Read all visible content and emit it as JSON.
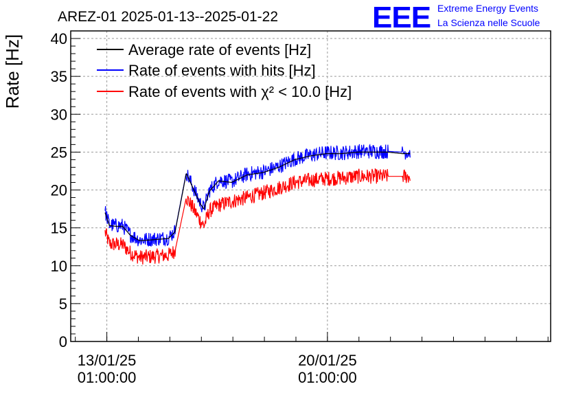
{
  "chart_data": {
    "type": "line",
    "title": "AREZ-01 2025-01-13--2025-01-22",
    "ylabel": "Rate [Hz]",
    "xlabel": "",
    "ylim": [
      0,
      41
    ],
    "yticks": [
      0,
      5,
      10,
      15,
      20,
      25,
      30,
      35,
      40
    ],
    "xlim": [
      "2025-01-11 21:30",
      "2025-01-27 03:00"
    ],
    "xticks": [
      {
        "date": "2025-01-13 01:00",
        "label_line1": "13/01/25",
        "label_line2": "01:00:00"
      },
      {
        "date": "2025-01-20 01:00",
        "label_line1": "20/01/25",
        "label_line2": "01:00:00"
      }
    ],
    "grid": true,
    "legend_position": "top-left",
    "series": [
      {
        "name": "Average rate of events [Hz]",
        "color": "#000000",
        "noise": 0,
        "points": [
          [
            "2025-01-12 23:40",
            17.0
          ],
          [
            "2025-01-13 03:00",
            15.3
          ],
          [
            "2025-01-13 08:00",
            15.2
          ],
          [
            "2025-01-13 13:00",
            15.2
          ],
          [
            "2025-01-13 19:00",
            14.0
          ],
          [
            "2025-01-14 02:00",
            13.3
          ],
          [
            "2025-01-14 10:00",
            13.4
          ],
          [
            "2025-01-15 00:00",
            13.6
          ],
          [
            "2025-01-15 05:00",
            14.5
          ],
          [
            "2025-01-15 13:30",
            22.2
          ],
          [
            "2025-01-15 18:00",
            20.5
          ],
          [
            "2025-01-16 00:00",
            18.2
          ],
          [
            "2025-01-16 03:00",
            17.5
          ],
          [
            "2025-01-16 07:00",
            19.8
          ],
          [
            "2025-01-16 14:00",
            21.2
          ],
          [
            "2025-01-17 00:00",
            21.0
          ],
          [
            "2025-01-17 12:00",
            22.0
          ],
          [
            "2025-01-18 00:00",
            22.3
          ],
          [
            "2025-01-18 12:00",
            23.0
          ],
          [
            "2025-01-19 00:00",
            24.0
          ],
          [
            "2025-01-19 12:00",
            24.5
          ],
          [
            "2025-01-20 00:00",
            24.8
          ],
          [
            "2025-01-20 12:00",
            24.8
          ],
          [
            "2025-01-21 00:00",
            25.0
          ],
          [
            "2025-01-21 12:00",
            25.0
          ],
          [
            "2025-01-21 23:00",
            25.0
          ],
          [
            "2025-01-22 10:00",
            24.8
          ],
          [
            "2025-01-22 16:00",
            24.8
          ]
        ]
      },
      {
        "name": "Rate of events with hits [Hz]",
        "color": "#0000ff",
        "noise": 1.0,
        "points": [
          [
            "2025-01-12 23:40",
            17.2
          ],
          [
            "2025-01-13 03:00",
            15.4
          ],
          [
            "2025-01-13 08:00",
            15.3
          ],
          [
            "2025-01-13 13:00",
            15.3
          ],
          [
            "2025-01-13 19:00",
            14.1
          ],
          [
            "2025-01-14 02:00",
            13.4
          ],
          [
            "2025-01-14 10:00",
            13.5
          ],
          [
            "2025-01-15 00:00",
            13.7
          ],
          [
            "2025-01-15 05:00",
            14.6
          ],
          [
            "2025-01-15 13:30",
            22.3
          ],
          [
            "2025-01-15 18:00",
            20.6
          ],
          [
            "2025-01-16 00:00",
            18.3
          ],
          [
            "2025-01-16 03:00",
            17.6
          ],
          [
            "2025-01-16 07:00",
            19.9
          ],
          [
            "2025-01-16 14:00",
            21.3
          ],
          [
            "2025-01-17 00:00",
            21.1
          ],
          [
            "2025-01-17 12:00",
            22.1
          ],
          [
            "2025-01-18 00:00",
            22.4
          ],
          [
            "2025-01-18 12:00",
            23.1
          ],
          [
            "2025-01-19 00:00",
            24.1
          ],
          [
            "2025-01-19 12:00",
            24.6
          ],
          [
            "2025-01-20 00:00",
            24.9
          ],
          [
            "2025-01-20 12:00",
            24.9
          ],
          [
            "2025-01-21 00:00",
            25.1
          ],
          [
            "2025-01-21 12:00",
            25.1
          ],
          [
            "2025-01-21 23:00",
            25.1
          ],
          [
            "2025-01-22 10:00",
            25.0
          ],
          [
            "2025-01-22 16:00",
            25.0
          ]
        ]
      },
      {
        "name": "Rate of events with χ² < 10.0 [Hz]",
        "color": "#ff0000",
        "noise": 1.0,
        "points": [
          [
            "2025-01-12 23:40",
            14.4
          ],
          [
            "2025-01-13 03:00",
            12.9
          ],
          [
            "2025-01-13 08:00",
            12.8
          ],
          [
            "2025-01-13 13:00",
            12.8
          ],
          [
            "2025-01-13 19:00",
            11.7
          ],
          [
            "2025-01-14 02:00",
            11.1
          ],
          [
            "2025-01-14 10:00",
            11.2
          ],
          [
            "2025-01-15 00:00",
            11.4
          ],
          [
            "2025-01-15 05:00",
            12.0
          ],
          [
            "2025-01-15 13:30",
            19.0
          ],
          [
            "2025-01-15 18:00",
            17.8
          ],
          [
            "2025-01-16 00:00",
            16.0
          ],
          [
            "2025-01-16 03:00",
            15.3
          ],
          [
            "2025-01-16 07:00",
            17.2
          ],
          [
            "2025-01-16 14:00",
            18.0
          ],
          [
            "2025-01-17 00:00",
            18.5
          ],
          [
            "2025-01-17 12:00",
            19.0
          ],
          [
            "2025-01-18 00:00",
            19.6
          ],
          [
            "2025-01-18 12:00",
            20.3
          ],
          [
            "2025-01-19 00:00",
            21.0
          ],
          [
            "2025-01-19 12:00",
            21.3
          ],
          [
            "2025-01-20 00:00",
            21.5
          ],
          [
            "2025-01-20 12:00",
            21.6
          ],
          [
            "2025-01-21 00:00",
            21.8
          ],
          [
            "2025-01-21 12:00",
            21.8
          ],
          [
            "2025-01-21 23:00",
            21.8
          ],
          [
            "2025-01-22 10:00",
            21.8
          ],
          [
            "2025-01-22 16:00",
            21.8
          ]
        ]
      }
    ],
    "gap": {
      "from": "2025-01-21 23:00",
      "to": "2025-01-22 10:00"
    }
  },
  "logo": {
    "mark": "EEE",
    "line1": "Extreme Energy Events",
    "line2": "La Scienza nelle Scuole",
    "color": "#0000ff"
  }
}
